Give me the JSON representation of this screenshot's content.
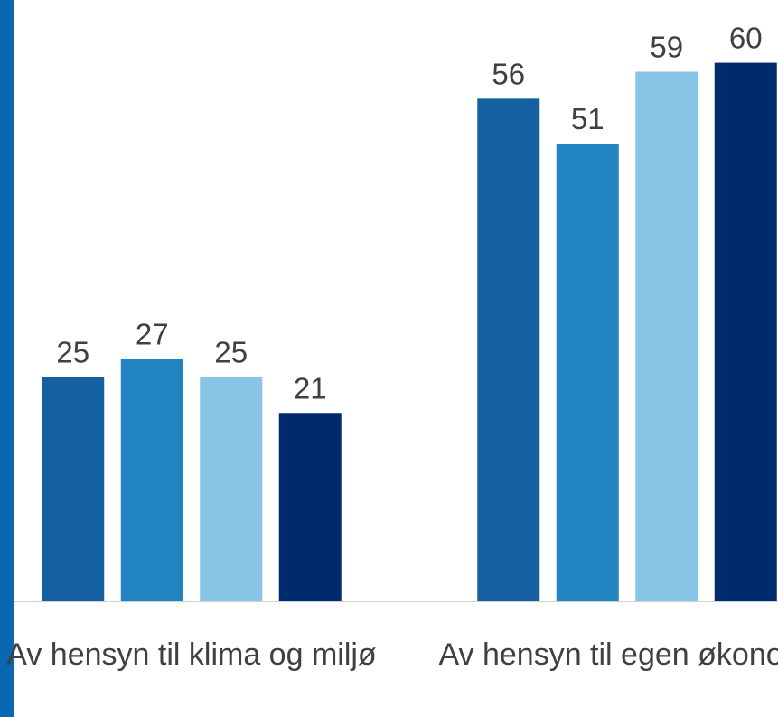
{
  "chart_data": {
    "type": "bar",
    "categories": [
      "Av hensyn til klima og miljø",
      "Av hensyn til egen økonomi"
    ],
    "series": [
      {
        "color": "#1560a0",
        "values": [
          25,
          56
        ]
      },
      {
        "color": "#2183bf",
        "values": [
          27,
          51
        ]
      },
      {
        "color": "#88c5e6",
        "values": [
          25,
          59
        ]
      },
      {
        "color": "#002a6e",
        "values": [
          21,
          60
        ]
      }
    ],
    "ylim": [
      0,
      67
    ]
  }
}
